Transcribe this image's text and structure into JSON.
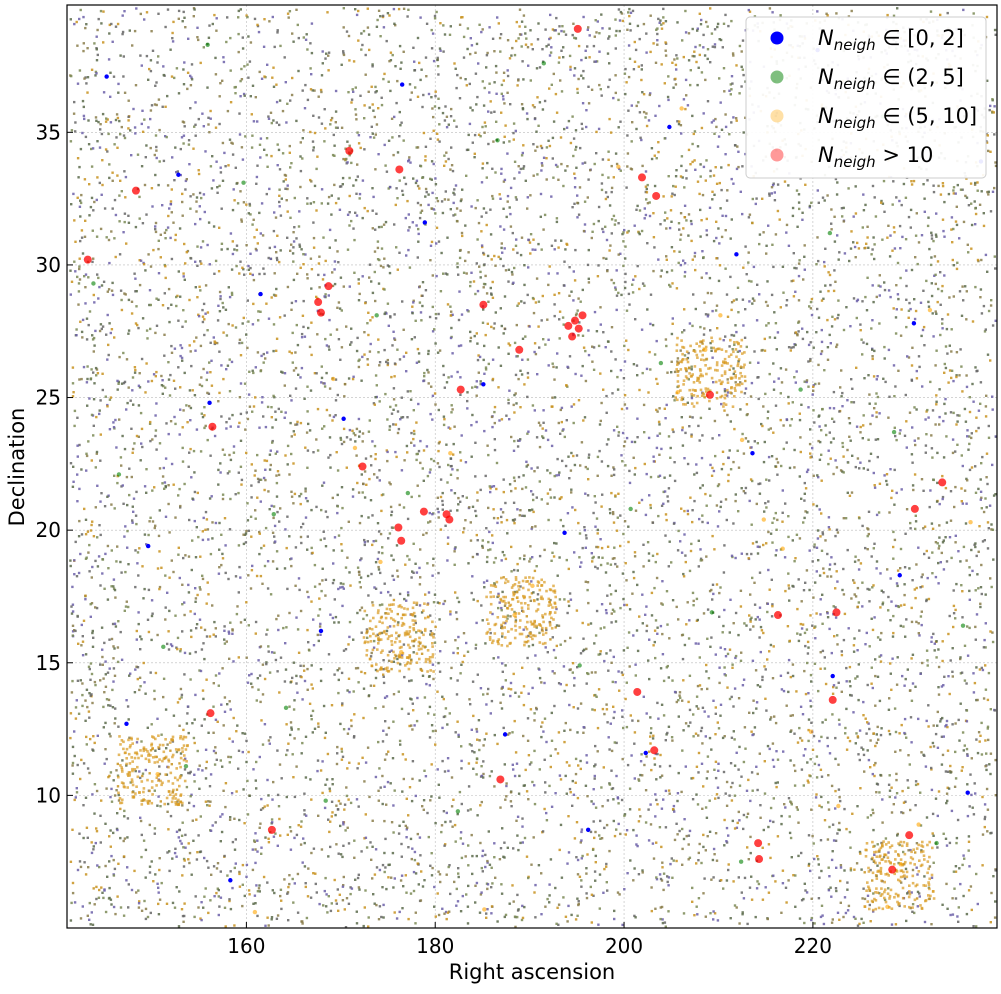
{
  "chart_data": {
    "type": "scatter",
    "title": "",
    "xlabel": "Right ascension",
    "ylabel": "Declination",
    "xlim": [
      141,
      239.5
    ],
    "ylim": [
      5,
      39.8
    ],
    "xticks": [
      160,
      180,
      200,
      220
    ],
    "yticks": [
      10,
      15,
      20,
      25,
      30,
      35
    ],
    "grid": true,
    "legend_position": "top-right",
    "series": [
      {
        "name": "$N_{neigh} \\in [0,2]$",
        "legend_parts": [
          "N",
          "neigh",
          " ∈ [0, 2]"
        ],
        "color": "#0000ff",
        "alpha": 1.0,
        "points": [
          [
            145.2,
            37.1
          ],
          [
            152.8,
            33.4
          ],
          [
            161.5,
            28.9
          ],
          [
            170.3,
            24.2
          ],
          [
            178.9,
            31.6
          ],
          [
            187.4,
            12.3
          ],
          [
            196.2,
            8.7
          ],
          [
            204.8,
            35.2
          ],
          [
            213.6,
            22.9
          ],
          [
            222.1,
            14.5
          ],
          [
            230.7,
            27.8
          ],
          [
            236.4,
            10.1
          ],
          [
            149.6,
            19.4
          ],
          [
            158.3,
            6.8
          ],
          [
            167.9,
            16.2
          ],
          [
            176.5,
            36.8
          ],
          [
            185.1,
            25.5
          ],
          [
            193.7,
            19.9
          ],
          [
            202.3,
            11.6
          ],
          [
            211.9,
            30.4
          ],
          [
            220.5,
            38.1
          ],
          [
            229.2,
            18.3
          ],
          [
            237.8,
            33.9
          ],
          [
            147.3,
            12.7
          ],
          [
            156.1,
            24.8
          ]
        ]
      },
      {
        "name": "$N_{neigh} \\in (2,5]$",
        "legend_parts": [
          "N",
          "neigh",
          " ∈ (2, 5]"
        ],
        "color": "#008000",
        "alpha": 0.5,
        "points": [
          [
            143.8,
            29.3
          ],
          [
            151.2,
            15.6
          ],
          [
            159.7,
            33.1
          ],
          [
            168.4,
            9.8
          ],
          [
            177.1,
            21.4
          ],
          [
            186.6,
            34.7
          ],
          [
            195.3,
            14.9
          ],
          [
            203.9,
            26.3
          ],
          [
            212.4,
            7.5
          ],
          [
            221.8,
            31.2
          ],
          [
            228.6,
            23.7
          ],
          [
            235.9,
            16.4
          ],
          [
            146.5,
            22.1
          ],
          [
            155.9,
            38.3
          ],
          [
            164.2,
            13.3
          ],
          [
            173.8,
            28.1
          ],
          [
            182.4,
            9.4
          ],
          [
            191.5,
            37.6
          ],
          [
            200.7,
            20.8
          ],
          [
            209.3,
            16.9
          ],
          [
            218.7,
            25.3
          ],
          [
            227.4,
            35.6
          ],
          [
            233.1,
            8.2
          ],
          [
            153.6,
            11.1
          ],
          [
            162.9,
            20.6
          ]
        ]
      },
      {
        "name": "$N_{neigh} \\in (5,10]$",
        "legend_parts": [
          "N",
          "neigh",
          " ∈ (5, 10]"
        ],
        "color": "#ffa500",
        "alpha": 0.35,
        "points": [
          [
            208.6,
            26.8
          ],
          [
            210.2,
            28.1
          ],
          [
            212.5,
            23.4
          ],
          [
            205.7,
            25.2
          ],
          [
            227.9,
            5.8
          ],
          [
            229.3,
            7.4
          ],
          [
            231.2,
            8.9
          ],
          [
            188.4,
            16.8
          ],
          [
            190.3,
            17.9
          ],
          [
            176.4,
            15.4
          ],
          [
            169.2,
            25.7
          ],
          [
            171.5,
            23.1
          ],
          [
            216.8,
            19.3
          ],
          [
            222.7,
            9.6
          ],
          [
            185.2,
            5.7
          ],
          [
            160.9,
            5.6
          ],
          [
            150.6,
            10.8
          ],
          [
            232.4,
            28.3
          ],
          [
            199.4,
            33.7
          ],
          [
            206.1,
            35.9
          ],
          [
            214.8,
            20.4
          ],
          [
            181.6,
            22.9
          ],
          [
            174.2,
            18.8
          ],
          [
            219.8,
            12.4
          ],
          [
            236.7,
            20.3
          ]
        ]
      },
      {
        "name": "$N_{neigh} > 10$",
        "legend_parts": [
          "N",
          "neigh",
          " > 10"
        ],
        "color": "#ff0000",
        "alpha": 0.4,
        "points": [
          [
            194.8,
            27.9
          ],
          [
            195.2,
            27.6
          ],
          [
            194.5,
            27.3
          ],
          [
            195.6,
            28.1
          ],
          [
            194.1,
            27.7
          ],
          [
            167.6,
            28.6
          ],
          [
            167.9,
            28.2
          ],
          [
            176.1,
            20.1
          ],
          [
            176.4,
            19.6
          ],
          [
            181.5,
            20.4
          ],
          [
            181.2,
            20.6
          ],
          [
            178.8,
            20.7
          ],
          [
            182.7,
            25.3
          ],
          [
            185.1,
            28.5
          ],
          [
            188.9,
            26.8
          ],
          [
            170.9,
            34.3
          ],
          [
            176.2,
            33.6
          ],
          [
            201.9,
            33.3
          ],
          [
            203.4,
            32.6
          ],
          [
            209.1,
            25.1
          ],
          [
            216.3,
            16.8
          ],
          [
            222.5,
            16.9
          ],
          [
            222.1,
            13.6
          ],
          [
            214.3,
            7.6
          ],
          [
            214.2,
            8.2
          ],
          [
            201.4,
            13.9
          ],
          [
            203.2,
            11.7
          ],
          [
            230.2,
            8.5
          ],
          [
            228.4,
            7.2
          ],
          [
            233.7,
            21.8
          ],
          [
            230.8,
            20.8
          ],
          [
            162.7,
            8.7
          ],
          [
            156.2,
            13.1
          ],
          [
            148.3,
            32.8
          ],
          [
            143.2,
            30.2
          ],
          [
            156.4,
            23.9
          ],
          [
            172.3,
            22.4
          ],
          [
            186.9,
            10.6
          ],
          [
            195.1,
            38.9
          ],
          [
            168.7,
            29.2
          ]
        ]
      }
    ]
  }
}
